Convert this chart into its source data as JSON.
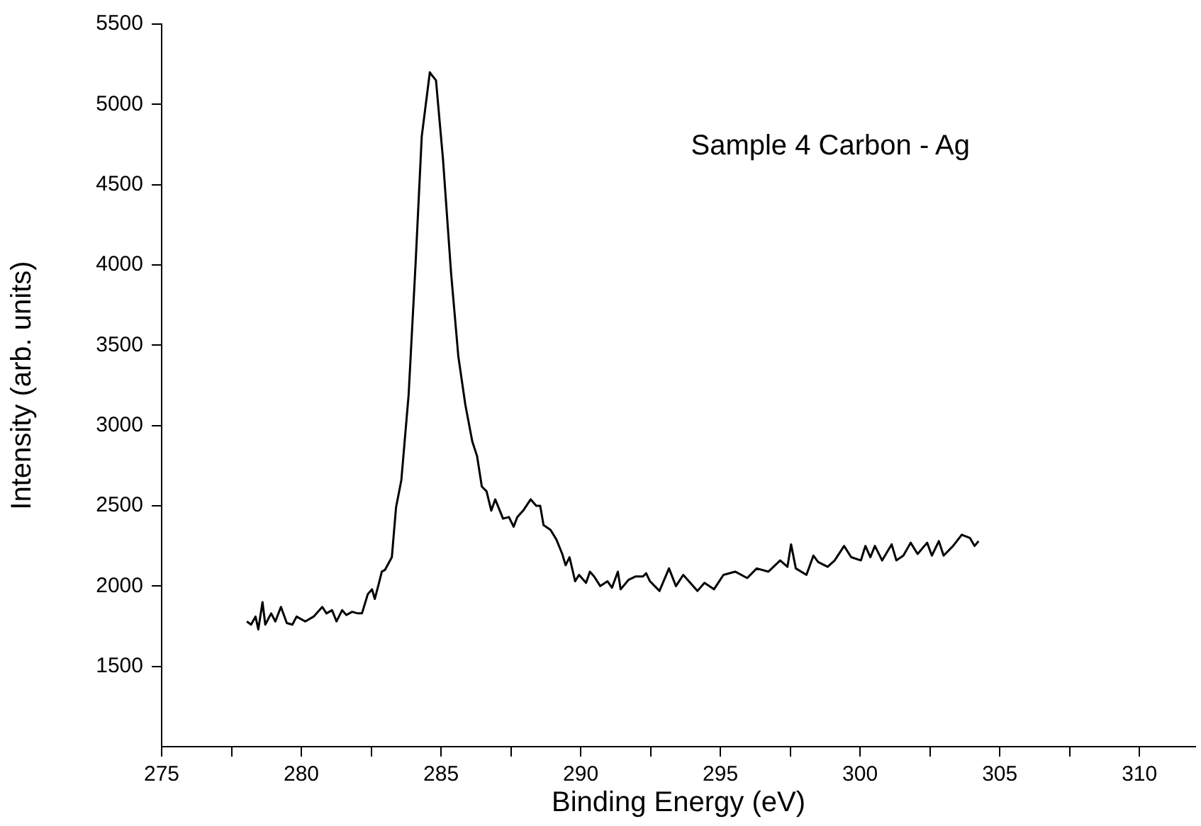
{
  "chart_data": {
    "type": "line",
    "xlabel": "Binding Energy (eV)",
    "ylabel": "Intensity (arb. units)",
    "annotations": [
      "Sample 4 Carbon - Ag"
    ],
    "xlim": [
      275,
      312
    ],
    "ylim": [
      1000,
      5500
    ],
    "xticks": [
      275,
      {
        "value": 277.5,
        "label": null
      },
      280,
      {
        "value": 282.5,
        "label": null
      },
      285,
      {
        "value": 287.5,
        "label": null
      },
      290,
      {
        "value": 292.5,
        "label": null
      },
      295,
      {
        "value": 297.5,
        "label": null
      },
      300,
      {
        "value": 302.5,
        "label": null
      },
      305,
      {
        "value": 307.5,
        "label": null
      },
      310
    ],
    "yticks": [
      1500,
      2000,
      2500,
      3000,
      3500,
      4000,
      4500,
      5000,
      5500
    ],
    "grid": false,
    "legend": false,
    "marker": "none",
    "line_style": "solid",
    "series": [
      {
        "color": "#000000",
        "x": [
          278.05,
          278.2,
          278.36,
          278.46,
          278.61,
          278.71,
          278.92,
          279.07,
          279.27,
          279.48,
          279.68,
          279.83,
          280.14,
          280.44,
          280.75,
          280.9,
          281.1,
          281.26,
          281.46,
          281.61,
          281.82,
          282.02,
          282.17,
          282.38,
          282.53,
          282.63,
          282.78,
          282.88,
          282.99,
          283.24,
          283.39,
          283.58,
          283.84,
          284.09,
          284.31,
          284.6,
          284.68,
          284.82,
          285.07,
          285.36,
          285.62,
          285.87,
          286.12,
          286.29,
          286.46,
          286.63,
          286.8,
          286.94,
          287.22,
          287.43,
          287.6,
          287.73,
          287.94,
          288.21,
          288.41,
          288.55,
          288.67,
          288.92,
          289.13,
          289.34,
          289.46,
          289.6,
          289.8,
          289.94,
          290.19,
          290.33,
          290.48,
          290.7,
          290.96,
          291.12,
          291.33,
          291.43,
          291.72,
          291.97,
          292.23,
          292.34,
          292.48,
          292.65,
          292.82,
          293.16,
          293.41,
          293.67,
          294.18,
          294.43,
          294.77,
          295.11,
          295.53,
          295.96,
          296.3,
          296.72,
          297.14,
          297.4,
          297.53,
          297.7,
          298.08,
          298.33,
          298.5,
          298.84,
          299.09,
          299.43,
          299.68,
          300.03,
          300.19,
          300.37,
          300.53,
          300.79,
          301.13,
          301.3,
          301.55,
          301.81,
          302.06,
          302.4,
          302.57,
          302.82,
          302.99,
          303.33,
          303.64,
          303.93,
          304.1,
          304.24
        ],
        "values": [
          1780,
          1760,
          1810,
          1730,
          1900,
          1760,
          1830,
          1780,
          1870,
          1770,
          1760,
          1810,
          1780,
          1810,
          1870,
          1830,
          1850,
          1780,
          1850,
          1820,
          1840,
          1830,
          1830,
          1950,
          1980,
          1920,
          2020,
          2090,
          2100,
          2180,
          2490,
          2660,
          3190,
          4010,
          4800,
          5200,
          5180,
          5150,
          4660,
          3950,
          3430,
          3130,
          2900,
          2810,
          2620,
          2590,
          2470,
          2540,
          2420,
          2430,
          2370,
          2430,
          2470,
          2540,
          2500,
          2500,
          2380,
          2350,
          2290,
          2200,
          2130,
          2180,
          2030,
          2070,
          2020,
          2090,
          2060,
          2000,
          2030,
          1990,
          2090,
          1980,
          2040,
          2060,
          2060,
          2080,
          2030,
          2000,
          1970,
          2110,
          2000,
          2070,
          1970,
          2020,
          1980,
          2070,
          2090,
          2050,
          2110,
          2090,
          2160,
          2120,
          2260,
          2110,
          2070,
          2190,
          2150,
          2120,
          2160,
          2250,
          2180,
          2160,
          2250,
          2180,
          2250,
          2160,
          2260,
          2160,
          2190,
          2270,
          2200,
          2270,
          2190,
          2280,
          2190,
          2250,
          2320,
          2300,
          2250,
          2280
        ]
      }
    ]
  }
}
